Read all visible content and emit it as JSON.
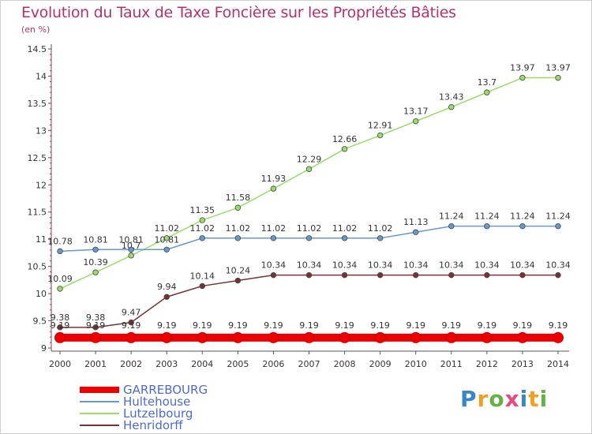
{
  "header": {
    "title": "Evolution du Taux de Taxe Foncière sur les Propriétés Bâties",
    "unit": "(en %)"
  },
  "logo": {
    "text": "Proxiti"
  },
  "chart_data": {
    "type": "line",
    "title": "Evolution du Taux de Taxe Foncière sur les Propriétés Bâties",
    "ylabel": "(en %)",
    "xlabel": "",
    "x": [
      "2000",
      "2001",
      "2002",
      "2003",
      "2004",
      "2005",
      "2006",
      "2007",
      "2008",
      "2009",
      "2010",
      "2011",
      "2012",
      "2013",
      "2014"
    ],
    "ylim": [
      9,
      14.5
    ],
    "yticks": [
      "9",
      "9.5",
      "10",
      "10.5",
      "11",
      "11.5",
      "12",
      "12.5",
      "13",
      "13.5",
      "14",
      "14.5"
    ],
    "grid": false,
    "legend_position": "bottom-left",
    "series": [
      {
        "name": "GARREBOURG",
        "color": "#ee0000",
        "values": [
          9.19,
          9.19,
          9.19,
          9.19,
          9.19,
          9.19,
          9.19,
          9.19,
          9.19,
          9.19,
          9.19,
          9.19,
          9.19,
          9.19,
          9.19
        ],
        "labels": [
          "9.19",
          "9.19",
          "9.19",
          "9.19",
          "9.19",
          "9.19",
          "9.19",
          "9.19",
          "9.19",
          "9.19",
          "9.19",
          "9.19",
          "9.19",
          "9.19",
          "9.19"
        ]
      },
      {
        "name": "Hultehouse",
        "color": "#6699cc",
        "values": [
          10.78,
          10.81,
          10.81,
          10.81,
          11.02,
          11.02,
          11.02,
          11.02,
          11.02,
          11.02,
          11.13,
          11.24,
          11.24,
          11.24,
          11.24
        ],
        "labels": [
          "10.78",
          "10.81",
          "10.81",
          "10.81",
          "11.02",
          "11.02",
          "11.02",
          "11.02",
          "11.02",
          "11.02",
          "11.13",
          "11.24",
          "11.24",
          "11.24",
          "11.24"
        ]
      },
      {
        "name": "Lutzelbourg",
        "color": "#99dd66",
        "values": [
          10.09,
          10.39,
          10.7,
          11.02,
          11.35,
          11.58,
          11.93,
          12.29,
          12.66,
          12.91,
          13.17,
          13.43,
          13.7,
          13.97,
          13.97
        ],
        "labels": [
          "10.09",
          "10.39",
          "10.7",
          "11.02",
          "11.35",
          "11.58",
          "11.93",
          "12.29",
          "12.66",
          "12.91",
          "13.17",
          "13.43",
          "13.7",
          "13.97",
          "13.97"
        ]
      },
      {
        "name": "Henridorff",
        "color": "#773333",
        "values": [
          9.38,
          9.38,
          9.47,
          9.94,
          10.14,
          10.24,
          10.34,
          10.34,
          10.34,
          10.34,
          10.34,
          10.34,
          10.34,
          10.34,
          10.34
        ],
        "labels": [
          "9.38",
          "9.38",
          "9.47",
          "9.94",
          "10.14",
          "10.24",
          "10.34",
          "10.34",
          "10.34",
          "10.34",
          "10.34",
          "10.34",
          "10.34",
          "10.34",
          "10.34"
        ]
      }
    ]
  }
}
